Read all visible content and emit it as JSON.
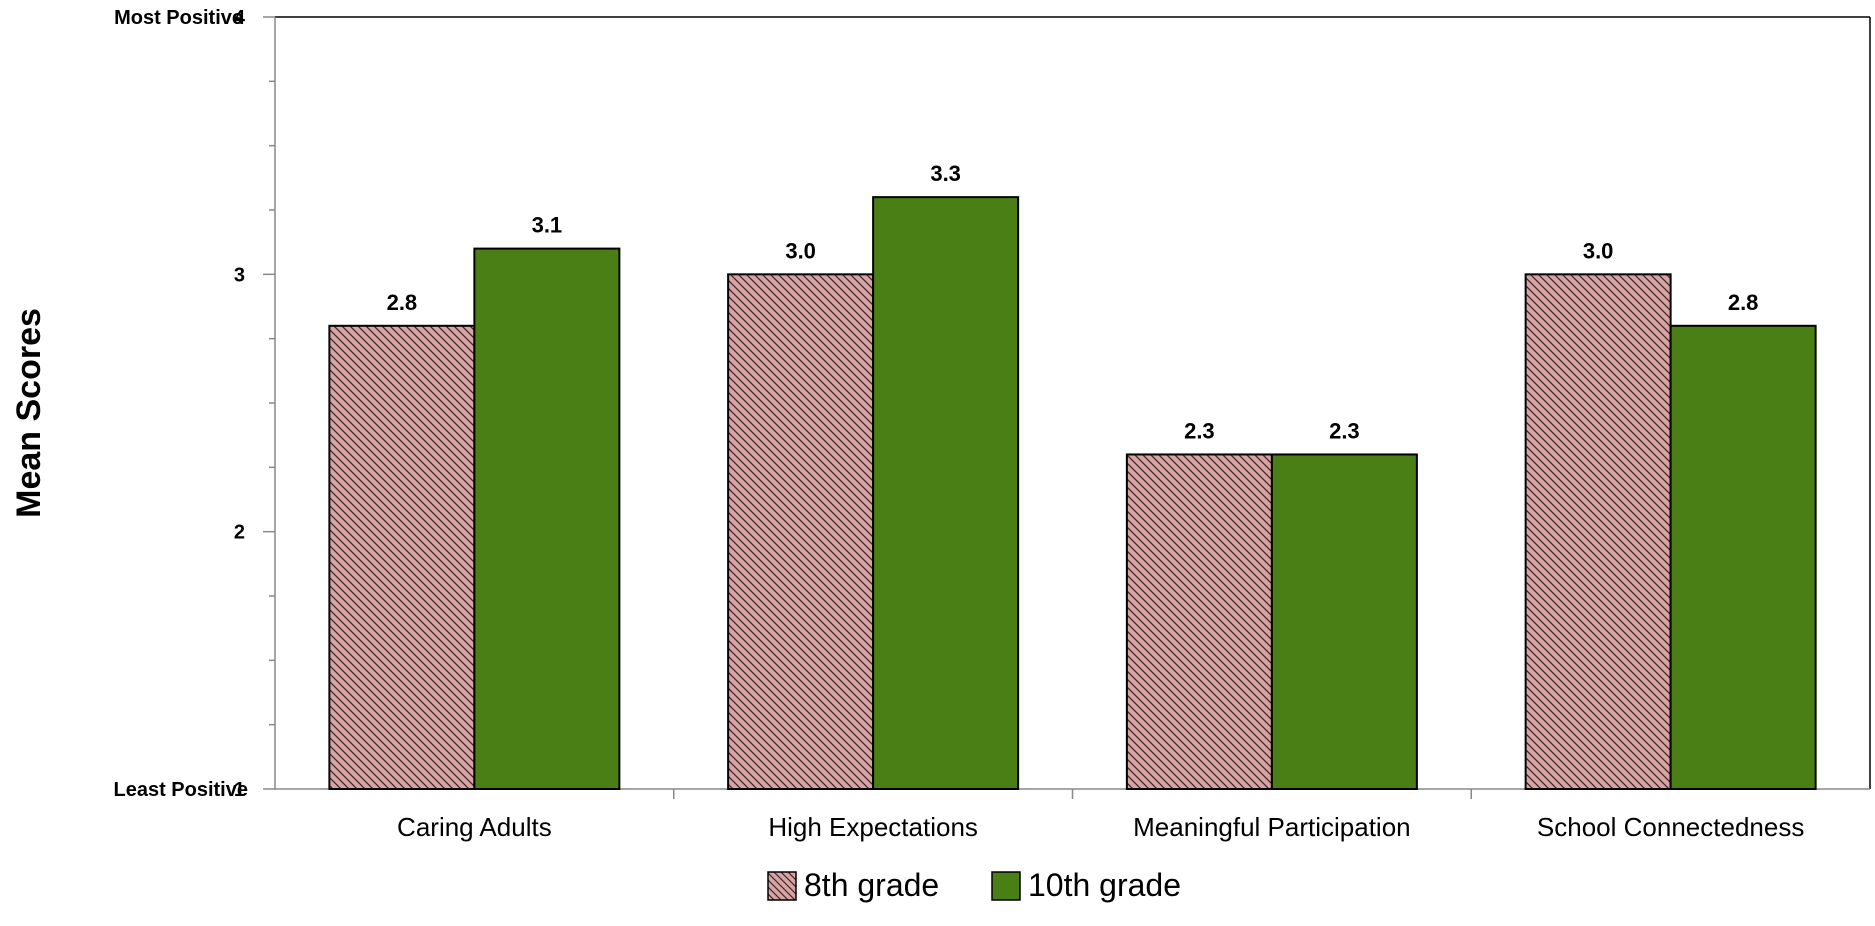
{
  "chart_data": {
    "type": "bar",
    "title": "",
    "ylabel": "Mean Scores",
    "xlabel": "",
    "ylim": [
      1,
      4
    ],
    "yticks": [
      1,
      2,
      3,
      4
    ],
    "y_anchor_labels": {
      "top": "Most Positive",
      "bottom": "Least Positive"
    },
    "categories": [
      "Caring Adults",
      "High Expectations",
      "Meaningful Participation",
      "School Connectedness"
    ],
    "series": [
      {
        "name": "8th grade",
        "values": [
          2.8,
          3.0,
          2.3,
          3.0
        ],
        "labels": [
          "2.8",
          "3.0",
          "2.3",
          "3.0"
        ],
        "color": "#d9a3a3",
        "pattern": "diagonal-hatch"
      },
      {
        "name": "10th grade",
        "values": [
          3.1,
          3.3,
          2.3,
          2.8
        ],
        "labels": [
          "3.1",
          "3.3",
          "2.3",
          "2.8"
        ],
        "color": "#4a7f16",
        "pattern": "solid"
      }
    ],
    "grid": false,
    "legend_position": "bottom-center"
  }
}
